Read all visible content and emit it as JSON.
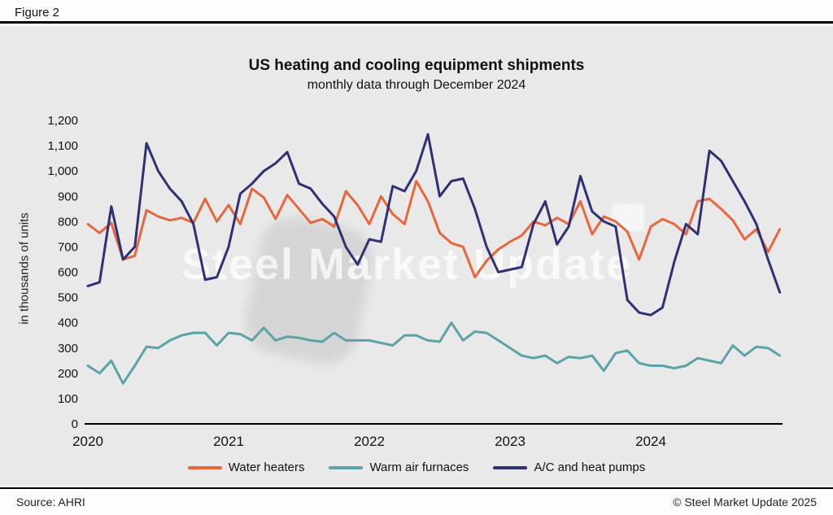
{
  "figure_label": "Figure 2",
  "title": "US heating and cooling equipment shipments",
  "subtitle": "monthly data through December 2024",
  "ylabel": "in thousands of units",
  "watermark": "Steel Market Update",
  "footer": {
    "source": "Source: AHRI",
    "copyright": "© Steel Market Update 2025"
  },
  "chart_data": {
    "type": "line",
    "x_start_year": 2020,
    "x_frequency": "monthly",
    "xticks": [
      2020,
      2021,
      2022,
      2023,
      2024
    ],
    "ylim": [
      0,
      1200
    ],
    "ytick_step": 100,
    "grid": false,
    "legend_position": "bottom",
    "series": [
      {
        "name": "Water heaters",
        "color": "#e8663c",
        "values": [
          790,
          755,
          795,
          650,
          665,
          845,
          820,
          805,
          815,
          795,
          890,
          800,
          865,
          790,
          930,
          895,
          810,
          905,
          850,
          795,
          810,
          780,
          920,
          865,
          790,
          900,
          830,
          790,
          960,
          880,
          755,
          715,
          700,
          580,
          645,
          690,
          720,
          745,
          800,
          785,
          815,
          790,
          880,
          750,
          820,
          800,
          760,
          650,
          780,
          810,
          790,
          750,
          880,
          890,
          850,
          805,
          730,
          770,
          680,
          770
        ]
      },
      {
        "name": "Warm air furnaces",
        "color": "#5ba3a8",
        "values": [
          230,
          200,
          250,
          160,
          230,
          305,
          300,
          330,
          350,
          360,
          360,
          310,
          360,
          355,
          330,
          380,
          330,
          345,
          340,
          330,
          325,
          360,
          330,
          330,
          330,
          320,
          310,
          350,
          350,
          330,
          325,
          400,
          330,
          365,
          360,
          330,
          300,
          270,
          260,
          270,
          240,
          265,
          260,
          270,
          210,
          280,
          290,
          240,
          230,
          230,
          220,
          230,
          260,
          250,
          240,
          310,
          270,
          305,
          300,
          270
        ]
      },
      {
        "name": "A/C and heat pumps",
        "color": "#2e3174",
        "values": [
          545,
          560,
          860,
          650,
          700,
          1110,
          1000,
          930,
          880,
          790,
          570,
          580,
          700,
          910,
          950,
          1000,
          1030,
          1075,
          950,
          930,
          870,
          820,
          700,
          630,
          730,
          720,
          940,
          920,
          1000,
          1145,
          900,
          960,
          970,
          850,
          700,
          600,
          610,
          620,
          790,
          880,
          710,
          780,
          980,
          840,
          800,
          780,
          490,
          440,
          430,
          460,
          640,
          790,
          750,
          1080,
          1040,
          960,
          880,
          790,
          650,
          520
        ]
      }
    ]
  }
}
